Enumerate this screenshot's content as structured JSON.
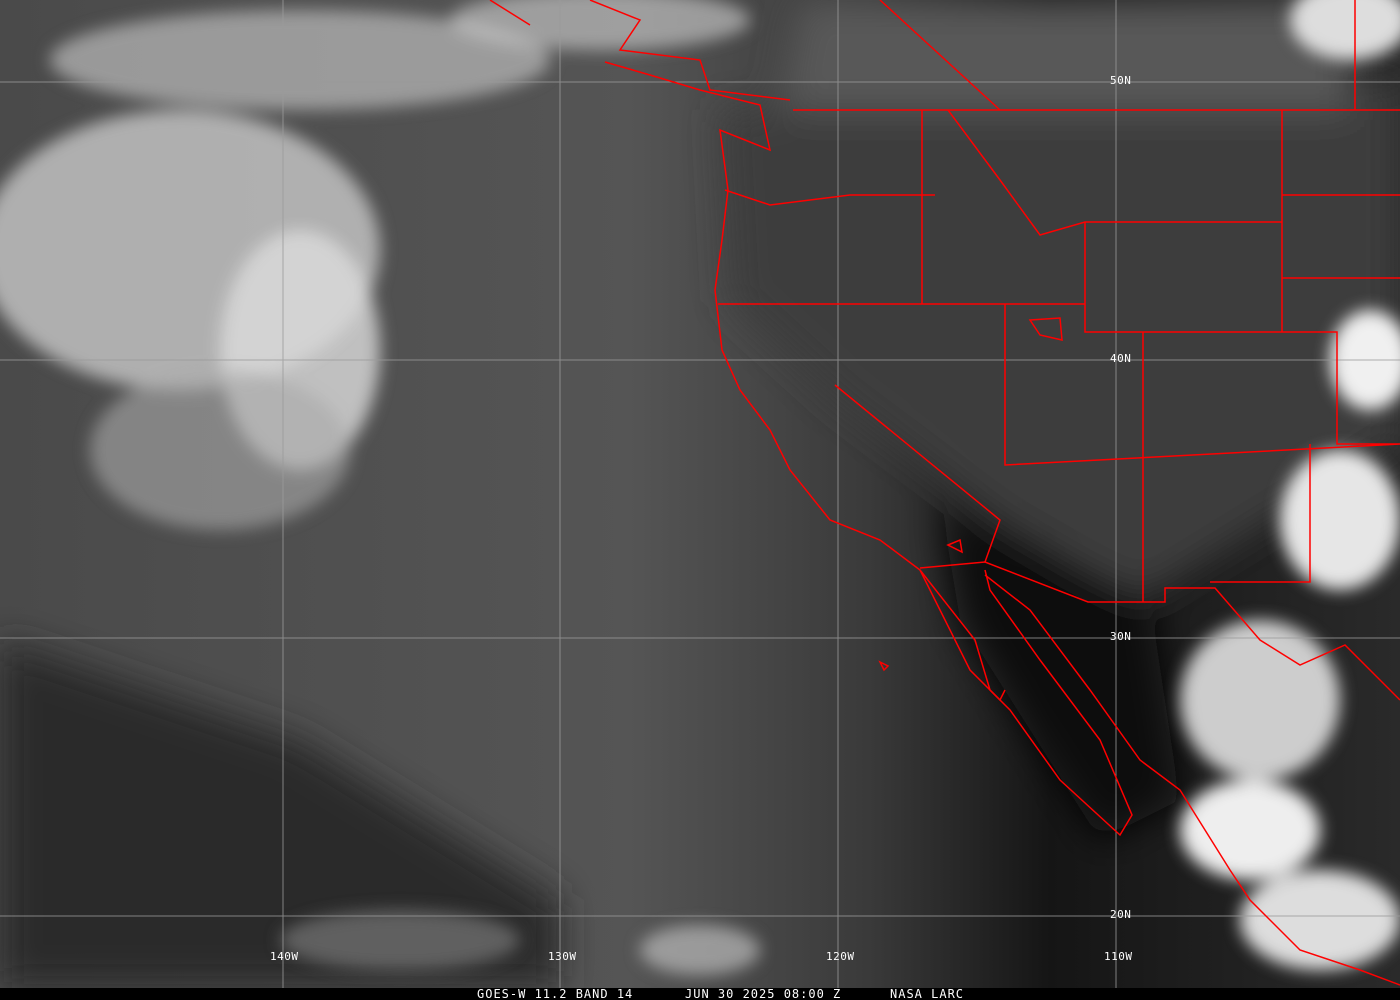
{
  "image": {
    "satellite": "GOES-W",
    "band_desc": "GOES-W 11.2 BAND 14",
    "datetime": "JUN 30 2025 08:00 Z",
    "source": "NASA LARC",
    "colors": {
      "borders": "#ff0000",
      "grid": "#9a9a9a",
      "text": "#ffffff"
    }
  },
  "grid": {
    "longitudes": [
      "140W",
      "130W",
      "120W",
      "110W"
    ],
    "latitudes": [
      "50N",
      "40N",
      "30N",
      "20N"
    ]
  }
}
